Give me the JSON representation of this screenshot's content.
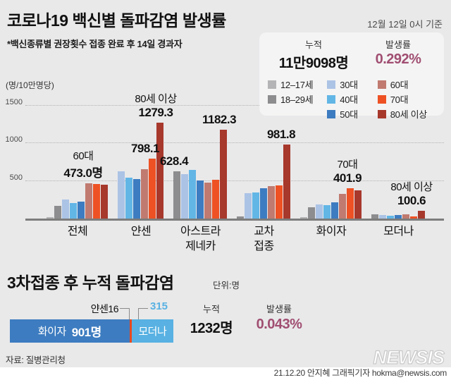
{
  "header": {
    "title": "코로나19 백신별 돌파감염 발생률",
    "date_note": "12월 12일 0시 기준",
    "subtitle": "*백신종류별 권장횟수 접종 완료 후 14일 경과자"
  },
  "summary": {
    "cumulative_label": "누적",
    "cumulative_value": "11만9098명",
    "rate_label": "발생률",
    "rate_value": "0.292%"
  },
  "legend": {
    "columns": [
      [
        {
          "label": "12–17세",
          "color": "#b4b4b6"
        },
        {
          "label": "18–29세",
          "color": "#8d8d8f"
        }
      ],
      [
        {
          "label": "30대",
          "color": "#abc3e5"
        },
        {
          "label": "40대",
          "color": "#62b6e6"
        },
        {
          "label": "50대",
          "color": "#3d7cc0"
        }
      ],
      [
        {
          "label": "60대",
          "color": "#c07a6f"
        },
        {
          "label": "70대",
          "color": "#ee5123"
        },
        {
          "label": "80세 이상",
          "color": "#a7382c"
        }
      ]
    ]
  },
  "chart_data": {
    "type": "bar",
    "title": "코로나19 백신별 돌파감염 발생률",
    "unit_label": "(명/10만명당)",
    "ylabel": "명/10만명당",
    "ylim": [
      0,
      1540
    ],
    "yticks": [
      500,
      1000,
      1500
    ],
    "ytick_labels": [
      "500",
      "1000",
      "1500"
    ],
    "grid": "dotted-horizontal",
    "series_names": [
      "12–17세",
      "18–29세",
      "30대",
      "40대",
      "50대",
      "60대",
      "70대",
      "80세 이상"
    ],
    "series_colors": [
      "#b4b4b6",
      "#8d8d8f",
      "#abc3e5",
      "#62b6e6",
      "#3d7cc0",
      "#c07a6f",
      "#ee5123",
      "#a7382c"
    ],
    "groups": [
      {
        "label_lines": [
          "전체"
        ],
        "values": [
          18,
          170,
          250,
          205,
          222,
          473.0,
          463,
          453
        ],
        "callouts": [
          {
            "series": 5,
            "lines": [
              "60대",
              "473.0명"
            ],
            "bold_from": 1,
            "dx": -8
          }
        ]
      },
      {
        "label_lines": [
          "얀센"
        ],
        "values": [
          null,
          null,
          630,
          545,
          525,
          655,
          798.1,
          1279.3
        ],
        "callouts": [
          {
            "series": 6,
            "lines": [
              "798.1"
            ],
            "bold_from": 0,
            "dx": -10
          },
          {
            "series": 7,
            "lines": [
              "80세 이상",
              "1279.3"
            ],
            "bold_from": 1,
            "dx": -6
          }
        ]
      },
      {
        "label_lines": [
          "아스트라",
          "제네카"
        ],
        "values": [
          null,
          628.4,
          590,
          645,
          505,
          480,
          520,
          1182.3
        ],
        "callouts": [
          {
            "series": 1,
            "lines": [
              "628.4"
            ],
            "bold_from": 0,
            "dx": -4
          },
          {
            "series": 7,
            "lines": [
              "1182.3"
            ],
            "bold_from": 0,
            "dx": -6
          }
        ]
      },
      {
        "label_lines": [
          "교차",
          "접종"
        ],
        "values": [
          null,
          30,
          335,
          345,
          400,
          435,
          437,
          981.8
        ],
        "callouts": [
          {
            "series": 7,
            "lines": [
              "981.8"
            ],
            "bold_from": 0,
            "dx": -8
          }
        ]
      },
      {
        "label_lines": [
          "화이자"
        ],
        "values": [
          18,
          152,
          185,
          178,
          215,
          330,
          401.9,
          372
        ],
        "callouts": [
          {
            "series": 6,
            "lines": [
              "70대",
              "401.9"
            ],
            "bold_from": 1,
            "dx": -4
          }
        ]
      },
      {
        "label_lines": [
          "모더나"
        ],
        "values": [
          null,
          55,
          48,
          42,
          45,
          60,
          28,
          100.6
        ],
        "callouts": [
          {
            "series": 7,
            "lines": [
              "80세 이상",
              "100.6"
            ],
            "bold_from": 1,
            "dx": -14
          }
        ]
      }
    ]
  },
  "booster_section": {
    "title": "3차접종 후 누적 돌파감염",
    "unit_note": "단위:명",
    "callout_janssen": "얀센16",
    "callout_moderna": "315",
    "stacked": [
      {
        "name": "화이자",
        "value": 901,
        "inner": [
          "화이자",
          "901명"
        ],
        "color": "#3d7cc0"
      },
      {
        "name": "얀센",
        "value": 16,
        "inner": [],
        "color": "#e8491f"
      },
      {
        "name": "모더나",
        "value": 315,
        "inner": [
          "모더나"
        ],
        "color": "#58b1e2"
      }
    ],
    "cumulative_label": "누적",
    "cumulative_value": "1232명",
    "rate_label": "발생률",
    "rate_value": "0.043%"
  },
  "footer": {
    "source": "자료: 질병관리청",
    "logo": "NEWSIS",
    "credit": "21.12.20  안지혜 그래픽기자 hokma@newsis.com"
  },
  "colors": {
    "background": "#e9e9ea",
    "panel": "#f4f4f4",
    "maroon_accent": "#a04e71",
    "axis": "#7d7d7d"
  }
}
